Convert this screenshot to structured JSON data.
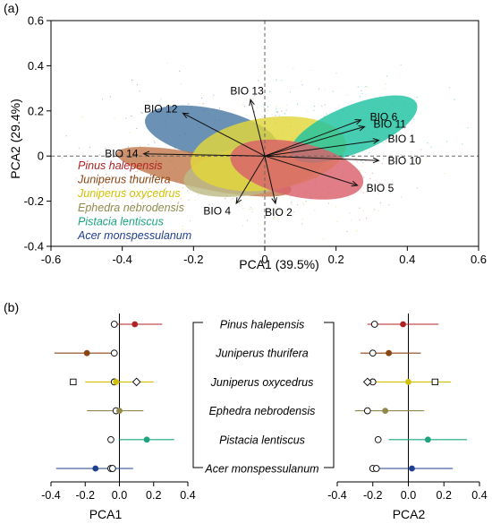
{
  "panel_a_label": "(a)",
  "panel_b_label": "(b)",
  "chart_data": [
    {
      "type": "scatter",
      "panel": "(a)",
      "xlabel": "PCA1 (39.5%)",
      "ylabel": "PCA2 (29.4%)",
      "xlim": [
        -0.6,
        0.6
      ],
      "ylim": [
        -0.4,
        0.6
      ],
      "xticks": [
        "-0.6",
        "-0.4",
        "-0.2",
        "0",
        "0.2",
        "0.4",
        "0.6"
      ],
      "yticks": [
        "-0.4",
        "-0.2",
        "0",
        "0.2",
        "0.4",
        "0.6"
      ],
      "grid": false,
      "legend_position": "left",
      "species": [
        {
          "name": "Pinus halepensis",
          "color": "#b22222",
          "fill": "#d9606b",
          "ellipse": {
            "cx": 0.09,
            "cy": -0.06,
            "rx": 0.19,
            "ry": 0.12,
            "angle": -12
          }
        },
        {
          "name": "Juniperus thurifera",
          "color": "#8b4513",
          "fill": "#c27a4d",
          "ellipse": {
            "cx": -0.17,
            "cy": -0.07,
            "rx": 0.25,
            "ry": 0.075,
            "angle": -12
          }
        },
        {
          "name": "Juniperus oxycedrus",
          "color": "#d4c000",
          "fill": "#e2d73b",
          "ellipse": {
            "cx": 0.01,
            "cy": 0.01,
            "rx": 0.22,
            "ry": 0.16,
            "angle": 8
          }
        },
        {
          "name": "Ephedra nebrodensis",
          "color": "#8f8a4c",
          "fill": "#bdbb86",
          "ellipse": {
            "cx": -0.03,
            "cy": -0.06,
            "rx": 0.2,
            "ry": 0.11,
            "angle": 10
          }
        },
        {
          "name": "Pistacia lentiscus",
          "color": "#1aa57f",
          "fill": "#1fc2a0",
          "ellipse": {
            "cx": 0.25,
            "cy": 0.12,
            "rx": 0.19,
            "ry": 0.105,
            "angle": 22
          }
        },
        {
          "name": "Acer monspessulanum",
          "color": "#1f3f8f",
          "fill": "#4a7aa5",
          "ellipse": {
            "cx": -0.15,
            "cy": 0.1,
            "rx": 0.19,
            "ry": 0.11,
            "angle": -12
          }
        }
      ],
      "vectors": [
        {
          "label": "BIO 13",
          "x": -0.04,
          "y": 0.25
        },
        {
          "label": "BIO 12",
          "x": -0.23,
          "y": 0.19
        },
        {
          "label": "BIO 6",
          "x": 0.27,
          "y": 0.16
        },
        {
          "label": "BIO 11",
          "x": 0.28,
          "y": 0.13
        },
        {
          "label": "BIO 1",
          "x": 0.32,
          "y": 0.07
        },
        {
          "label": "BIO 10",
          "x": 0.32,
          "y": -0.02
        },
        {
          "label": "BIO 5",
          "x": 0.26,
          "y": -0.13
        },
        {
          "label": "BIO 2",
          "x": 0.03,
          "y": -0.21
        },
        {
          "label": "BIO 4",
          "x": -0.08,
          "y": -0.21
        },
        {
          "label": "BIO 14",
          "x": -0.34,
          "y": 0.01
        }
      ]
    },
    {
      "type": "dot",
      "panel": "(b)",
      "xlabel": "PCA1",
      "xlim": [
        -0.4,
        0.4
      ],
      "xticks": [
        "-0.4",
        "-0.2",
        "0.0",
        "0.2",
        "0.4"
      ],
      "rows": [
        {
          "species": "Pinus halepensis",
          "color": "#b22222",
          "mean": 0.09,
          "lo": -0.02,
          "hi": 0.25,
          "open": [
            -0.03
          ]
        },
        {
          "species": "Juniperus thurifera",
          "color": "#8b4513",
          "mean": -0.19,
          "lo": -0.38,
          "hi": -0.02,
          "open": [
            -0.03
          ]
        },
        {
          "species": "Juniperus oxycedrus",
          "color": "#d4c000",
          "mean": -0.02,
          "lo": -0.2,
          "hi": 0.2,
          "open": [
            -0.03
          ],
          "square": [
            -0.27
          ],
          "diamond": [
            0.1
          ]
        },
        {
          "species": "Ephedra nebrodensis",
          "color": "#8f8a4c",
          "mean": 0.0,
          "lo": -0.19,
          "hi": 0.14,
          "open": [
            -0.02
          ]
        },
        {
          "species": "Pistacia lentiscus",
          "color": "#1aa57f",
          "mean": 0.16,
          "lo": 0.0,
          "hi": 0.32,
          "open": [
            -0.05
          ]
        },
        {
          "species": "Acer monspessulanum",
          "color": "#1f3f8f",
          "mean": -0.14,
          "lo": -0.37,
          "hi": 0.08,
          "open": [
            -0.05,
            -0.04
          ]
        }
      ]
    },
    {
      "type": "dot",
      "panel": "(b)",
      "xlabel": "PCA2",
      "xlim": [
        -0.4,
        0.4
      ],
      "xticks": [
        "-0.4",
        "-0.2",
        "0.0",
        "0.2",
        "0.4"
      ],
      "rows": [
        {
          "species": "Pinus halepensis",
          "color": "#b22222",
          "mean": -0.03,
          "lo": -0.23,
          "hi": 0.17,
          "open": [
            -0.19
          ]
        },
        {
          "species": "Juniperus thurifera",
          "color": "#8b4513",
          "mean": -0.11,
          "lo": -0.27,
          "hi": 0.07,
          "open": [
            -0.2
          ]
        },
        {
          "species": "Juniperus oxycedrus",
          "color": "#d4c000",
          "mean": 0.0,
          "lo": -0.24,
          "hi": 0.24,
          "open": [
            -0.2
          ],
          "square": [
            0.15
          ],
          "diamond": [
            -0.23
          ]
        },
        {
          "species": "Ephedra nebrodensis",
          "color": "#8f8a4c",
          "mean": -0.13,
          "lo": -0.3,
          "hi": 0.09,
          "open": [
            -0.23
          ]
        },
        {
          "species": "Pistacia lentiscus",
          "color": "#1aa57f",
          "mean": 0.11,
          "lo": -0.11,
          "hi": 0.33,
          "open": [
            -0.17
          ]
        },
        {
          "species": "Acer monspessulanum",
          "color": "#1f3f8f",
          "mean": 0.02,
          "lo": -0.17,
          "hi": 0.25,
          "open": [
            -0.2,
            -0.18
          ]
        }
      ]
    }
  ]
}
